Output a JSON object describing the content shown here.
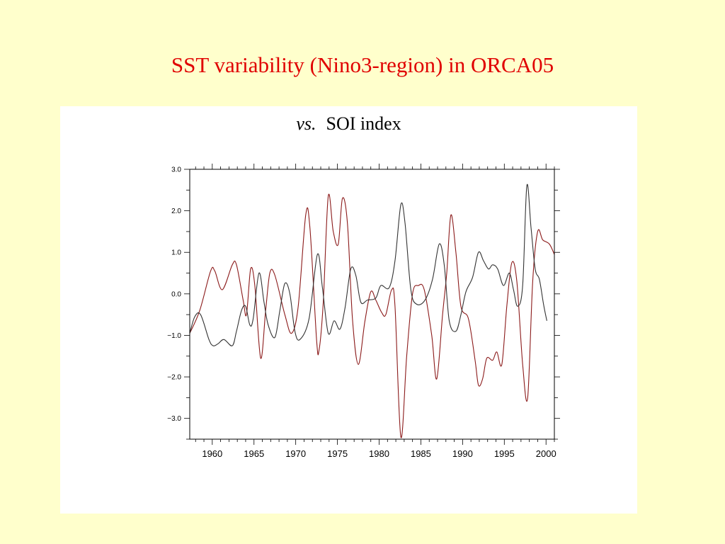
{
  "slide": {
    "title": "SST variability (Nino3-region) in ORCA05",
    "subtitle_italic": "vs.",
    "subtitle_rest": "SOI index"
  },
  "chart_data": {
    "type": "line",
    "title": "",
    "xlabel": "",
    "ylabel": "",
    "xlim": [
      1957.3,
      2001.0
    ],
    "ylim": [
      -3.5,
      3.0
    ],
    "x_ticks": [
      1960,
      1965,
      1970,
      1975,
      1980,
      1985,
      1990,
      1995,
      2000
    ],
    "x_tick_labels": [
      "1960",
      "1965",
      "1970",
      "1975",
      "1980",
      "1985",
      "1990",
      "1995",
      "2000"
    ],
    "y_ticks": [
      3.0,
      2.0,
      1.0,
      0.0,
      -1.0,
      -2.0,
      -3.0
    ],
    "y_tick_labels": [
      "3.0",
      "2.0",
      "1.0",
      "0.0",
      "−1.0",
      "−2.0",
      "−3.0"
    ],
    "grid": false,
    "series": [
      {
        "color": "#8b1a1a",
        "points": [
          [
            1957.3,
            -0.95
          ],
          [
            1958.5,
            -0.4
          ],
          [
            1959.8,
            0.55
          ],
          [
            1960.3,
            0.55
          ],
          [
            1961.2,
            0.1
          ],
          [
            1962.4,
            0.7
          ],
          [
            1962.9,
            0.7
          ],
          [
            1963.7,
            -0.15
          ],
          [
            1964.1,
            -0.5
          ],
          [
            1964.6,
            0.6
          ],
          [
            1965.1,
            0.2
          ],
          [
            1965.8,
            -1.55
          ],
          [
            1966.4,
            -0.4
          ],
          [
            1966.9,
            0.5
          ],
          [
            1967.5,
            0.45
          ],
          [
            1968.7,
            -0.5
          ],
          [
            1969.5,
            -0.95
          ],
          [
            1970.3,
            -0.3
          ],
          [
            1971.2,
            1.9
          ],
          [
            1971.7,
            1.6
          ],
          [
            1972.5,
            -1.1
          ],
          [
            1972.8,
            -1.35
          ],
          [
            1973.3,
            -0.2
          ],
          [
            1973.9,
            2.35
          ],
          [
            1974.5,
            1.5
          ],
          [
            1975.1,
            1.2
          ],
          [
            1975.6,
            2.3
          ],
          [
            1976.2,
            1.7
          ],
          [
            1976.8,
            -0.6
          ],
          [
            1977.5,
            -1.7
          ],
          [
            1978.3,
            -0.65
          ],
          [
            1979.0,
            0.05
          ],
          [
            1979.6,
            -0.15
          ],
          [
            1980.3,
            -0.45
          ],
          [
            1980.8,
            -0.5
          ],
          [
            1981.5,
            0.1
          ],
          [
            1981.9,
            -0.3
          ],
          [
            1982.6,
            -3.45
          ],
          [
            1983.3,
            -1.5
          ],
          [
            1984.0,
            0.0
          ],
          [
            1984.7,
            0.2
          ],
          [
            1985.4,
            0.1
          ],
          [
            1986.3,
            -1.0
          ],
          [
            1986.9,
            -2.05
          ],
          [
            1987.6,
            -0.5
          ],
          [
            1988.1,
            0.5
          ],
          [
            1988.6,
            1.9
          ],
          [
            1989.2,
            1.0
          ],
          [
            1989.8,
            -0.3
          ],
          [
            1990.7,
            -0.6
          ],
          [
            1991.5,
            -1.6
          ],
          [
            1991.9,
            -2.2
          ],
          [
            1992.4,
            -2.05
          ],
          [
            1992.9,
            -1.55
          ],
          [
            1993.6,
            -1.6
          ],
          [
            1994.1,
            -1.4
          ],
          [
            1994.7,
            -1.7
          ],
          [
            1995.3,
            -0.3
          ],
          [
            1995.9,
            0.75
          ],
          [
            1996.5,
            0.3
          ],
          [
            1997.2,
            -1.7
          ],
          [
            1997.8,
            -2.5
          ],
          [
            1998.4,
            0.3
          ],
          [
            1999.0,
            1.5
          ],
          [
            1999.6,
            1.3
          ],
          [
            2000.4,
            1.2
          ],
          [
            2001.0,
            0.95
          ]
        ]
      },
      {
        "color": "#333333",
        "points": [
          [
            1957.3,
            -0.95
          ],
          [
            1957.9,
            -0.55
          ],
          [
            1958.6,
            -0.5
          ],
          [
            1959.6,
            -1.1
          ],
          [
            1960.1,
            -1.25
          ],
          [
            1960.7,
            -1.2
          ],
          [
            1961.4,
            -1.1
          ],
          [
            1962.4,
            -1.25
          ],
          [
            1962.9,
            -0.9
          ],
          [
            1963.5,
            -0.4
          ],
          [
            1964.0,
            -0.3
          ],
          [
            1964.5,
            -0.75
          ],
          [
            1964.9,
            -0.6
          ],
          [
            1965.6,
            0.5
          ],
          [
            1966.2,
            -0.2
          ],
          [
            1966.7,
            -0.75
          ],
          [
            1967.5,
            -1.05
          ],
          [
            1968.1,
            -0.4
          ],
          [
            1968.7,
            0.25
          ],
          [
            1969.3,
            0.0
          ],
          [
            1969.9,
            -0.9
          ],
          [
            1970.5,
            -1.1
          ],
          [
            1971.6,
            -0.6
          ],
          [
            1972.6,
            0.95
          ],
          [
            1973.2,
            0.15
          ],
          [
            1973.9,
            -0.95
          ],
          [
            1974.6,
            -0.65
          ],
          [
            1975.3,
            -0.85
          ],
          [
            1975.9,
            -0.35
          ],
          [
            1976.6,
            0.6
          ],
          [
            1977.2,
            0.45
          ],
          [
            1977.8,
            -0.2
          ],
          [
            1978.6,
            -0.15
          ],
          [
            1979.6,
            -0.1
          ],
          [
            1980.2,
            0.2
          ],
          [
            1981.2,
            0.15
          ],
          [
            1981.9,
            0.8
          ],
          [
            1982.6,
            2.15
          ],
          [
            1983.1,
            1.7
          ],
          [
            1983.8,
            0.1
          ],
          [
            1984.5,
            -0.25
          ],
          [
            1985.5,
            -0.15
          ],
          [
            1986.4,
            0.35
          ],
          [
            1987.2,
            1.2
          ],
          [
            1987.8,
            0.7
          ],
          [
            1988.4,
            -0.65
          ],
          [
            1989.2,
            -0.9
          ],
          [
            1989.8,
            -0.5
          ],
          [
            1990.4,
            0.05
          ],
          [
            1991.2,
            0.4
          ],
          [
            1991.9,
            1.0
          ],
          [
            1992.5,
            0.8
          ],
          [
            1993.1,
            0.6
          ],
          [
            1993.6,
            0.7
          ],
          [
            1994.2,
            0.6
          ],
          [
            1994.9,
            0.2
          ],
          [
            1995.6,
            0.5
          ],
          [
            1996.1,
            0.1
          ],
          [
            1996.6,
            -0.3
          ],
          [
            1997.2,
            0.2
          ],
          [
            1997.7,
            2.6
          ],
          [
            1998.2,
            1.6
          ],
          [
            1998.7,
            0.6
          ],
          [
            1999.2,
            0.35
          ],
          [
            1999.7,
            -0.25
          ],
          [
            2000.1,
            -0.65
          ]
        ]
      }
    ]
  }
}
